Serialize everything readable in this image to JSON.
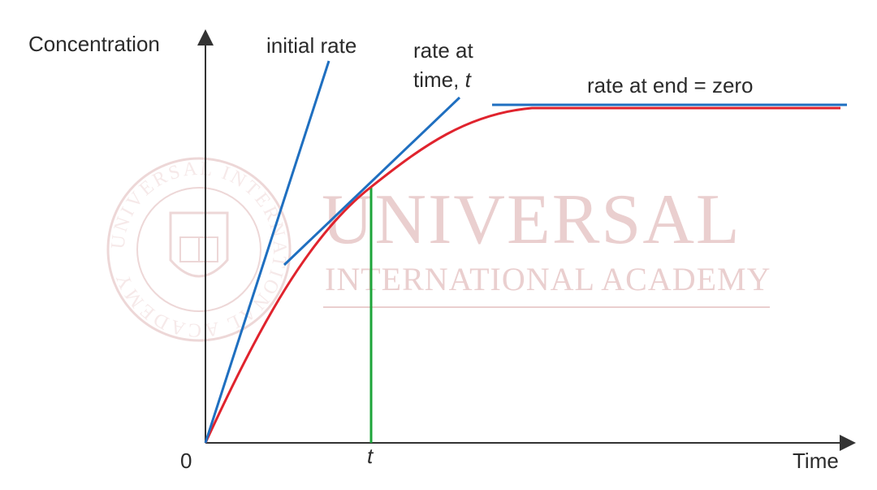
{
  "axes": {
    "y_label": "Concentration",
    "x_label": "Time",
    "origin_label": "0",
    "x_tick_label": "t"
  },
  "annotations": {
    "initial_rate": "initial rate",
    "rate_at_t_line1": "rate at",
    "rate_at_t_line2_prefix": "time, ",
    "rate_at_t_line2_var": "t",
    "rate_at_end": "rate at end = zero"
  },
  "watermark": {
    "title": "UNIVERSAL",
    "subtitle": "INTERNATIONAL ACADEMY",
    "seal_text": "UNIVERSAL INTERNATIONAL ACADEMY"
  },
  "colors": {
    "curve": "#e0232d",
    "tangent": "#1f6fc0",
    "marker": "#1ea53a",
    "axis": "#333333",
    "watermark": "#d9a8a8"
  }
}
